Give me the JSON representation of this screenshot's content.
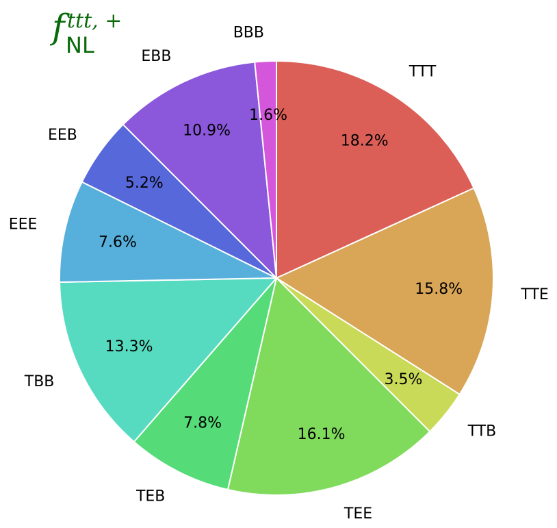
{
  "chart_data": {
    "type": "pie",
    "title": {
      "symbol": "f",
      "superscript": "ttt, +",
      "subscript": "NL"
    },
    "title_color": "#0a6a0a",
    "start_angle_deg": 90,
    "direction": "clockwise",
    "slices": [
      {
        "label": "TTT",
        "value": 18.2,
        "pct_label": "18.2%",
        "color": "#db5f57"
      },
      {
        "label": "TTE",
        "value": 15.8,
        "pct_label": "15.8%",
        "color": "#d9a557"
      },
      {
        "label": "TTB",
        "value": 3.5,
        "pct_label": "3.5%",
        "color": "#c8da57"
      },
      {
        "label": "TEE",
        "value": 16.1,
        "pct_label": "16.1%",
        "color": "#80db5d"
      },
      {
        "label": "TEB",
        "value": 7.8,
        "pct_label": "7.8%",
        "color": "#55db77"
      },
      {
        "label": "TBB",
        "value": 13.3,
        "pct_label": "13.3%",
        "color": "#57dbc0"
      },
      {
        "label": "EEE",
        "value": 7.6,
        "pct_label": "7.6%",
        "color": "#57afdb"
      },
      {
        "label": "EEB",
        "value": 5.2,
        "pct_label": "5.2%",
        "color": "#5768db"
      },
      {
        "label": "EBB",
        "value": 10.9,
        "pct_label": "10.9%",
        "color": "#8b57db"
      },
      {
        "label": "BBB",
        "value": 1.6,
        "pct_label": "1.6%",
        "color": "#d457db"
      }
    ]
  }
}
